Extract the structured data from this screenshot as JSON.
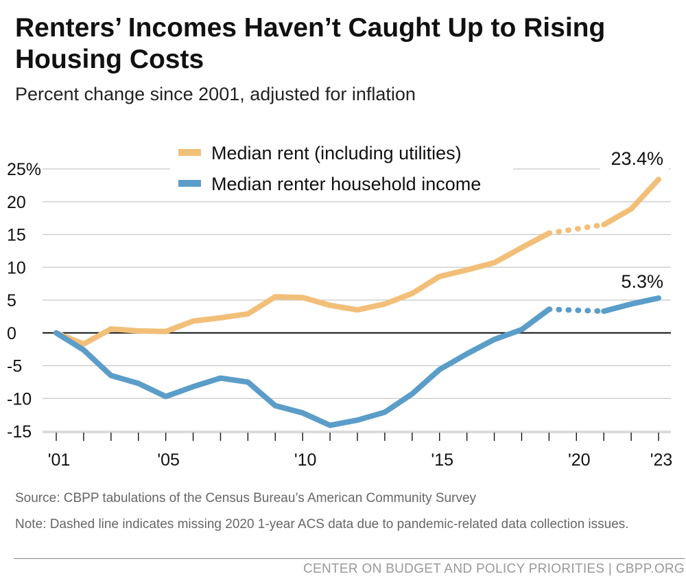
{
  "header": {
    "title": "Renters’ Incomes Haven’t Caught Up to Rising Housing Costs",
    "subtitle": "Percent change since 2001, adjusted for inflation"
  },
  "chart_data": {
    "type": "line",
    "title": "Renters’ Incomes Haven’t Caught Up to Rising Housing Costs",
    "subtitle": "Percent change since 2001, adjusted for inflation",
    "xlabel": "",
    "ylabel": "",
    "x": [
      2001,
      2002,
      2003,
      2004,
      2005,
      2006,
      2007,
      2008,
      2009,
      2010,
      2011,
      2012,
      2013,
      2014,
      2015,
      2016,
      2017,
      2018,
      2019,
      2020,
      2021,
      2022,
      2023
    ],
    "xlim": [
      2001,
      2023
    ],
    "x_ticks": [
      2001,
      2005,
      2010,
      2015,
      2020,
      2023
    ],
    "x_tick_labels": [
      "'01",
      "'05",
      "'10",
      "'15",
      "'20",
      "'23"
    ],
    "ylim": [
      -15,
      25
    ],
    "y_ticks": [
      -15,
      -10,
      -5,
      0,
      5,
      10,
      15,
      20,
      25
    ],
    "y_tick_labels": [
      "-15",
      "-10",
      "-5",
      "0",
      "5",
      "10",
      "15",
      "20",
      "25%"
    ],
    "grid": true,
    "legend_position": "top-center",
    "series": [
      {
        "name": "Median rent (including utilities)",
        "color": "#F2BF79",
        "values": [
          0,
          -1.7,
          0.6,
          0.3,
          0.2,
          1.8,
          2.3,
          2.9,
          5.5,
          5.4,
          4.2,
          3.5,
          4.4,
          6.0,
          8.6,
          9.6,
          10.7,
          13.0,
          15.2,
          null,
          16.5,
          18.9,
          23.4
        ],
        "end_label": "23.4%"
      },
      {
        "name": "Median renter household income",
        "color": "#5B9DC9",
        "values": [
          0,
          -2.6,
          -6.5,
          -7.7,
          -9.7,
          -8.2,
          -6.9,
          -7.5,
          -11.1,
          -12.2,
          -14.1,
          -13.3,
          -12.1,
          -9.3,
          -5.6,
          -3.2,
          -1.0,
          0.5,
          3.6,
          null,
          3.3,
          4.4,
          5.3
        ],
        "end_label": "5.3%"
      }
    ],
    "gap_note": "Dashed line spans missing 2020 data"
  },
  "footer": {
    "source": "Source: CBPP tabulations of the Census Bureau’s American Community Survey",
    "note": "Note: Dashed line indicates missing 2020 1-year ACS data due to pandemic-related data collection issues.",
    "org": "CENTER ON BUDGET AND POLICY PRIORITIES | CBPP.ORG"
  }
}
